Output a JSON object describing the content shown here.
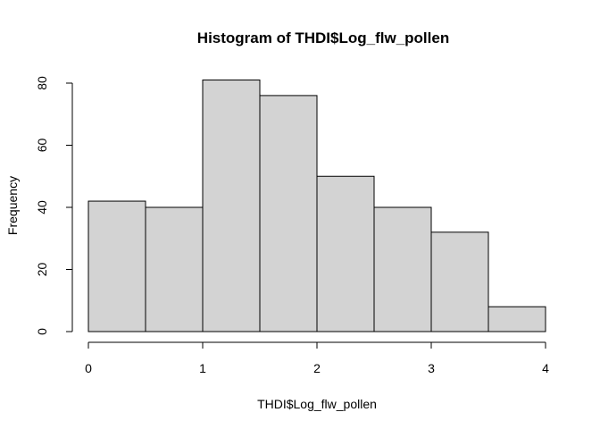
{
  "chart_data": {
    "type": "bar",
    "title": "Histogram of THDI$Log_flw_pollen",
    "xlabel": "THDI$Log_flw_pollen",
    "ylabel": "Frequency",
    "bins": [
      {
        "x0": 0.0,
        "x1": 0.5,
        "count": 42
      },
      {
        "x0": 0.5,
        "x1": 1.0,
        "count": 40
      },
      {
        "x0": 1.0,
        "x1": 1.5,
        "count": 81
      },
      {
        "x0": 1.5,
        "x1": 2.0,
        "count": 76
      },
      {
        "x0": 2.0,
        "x1": 2.5,
        "count": 50
      },
      {
        "x0": 2.5,
        "x1": 3.0,
        "count": 40
      },
      {
        "x0": 3.0,
        "x1": 3.5,
        "count": 32
      },
      {
        "x0": 3.5,
        "x1": 4.0,
        "count": 8
      }
    ],
    "xlim": [
      0,
      4
    ],
    "ylim": [
      0,
      80
    ],
    "xticks": [
      "0",
      "1",
      "2",
      "3",
      "4"
    ],
    "yticks": [
      "0",
      "20",
      "40",
      "60",
      "80"
    ],
    "bar_color": "#d3d3d3",
    "grid": false,
    "legend": "none"
  }
}
